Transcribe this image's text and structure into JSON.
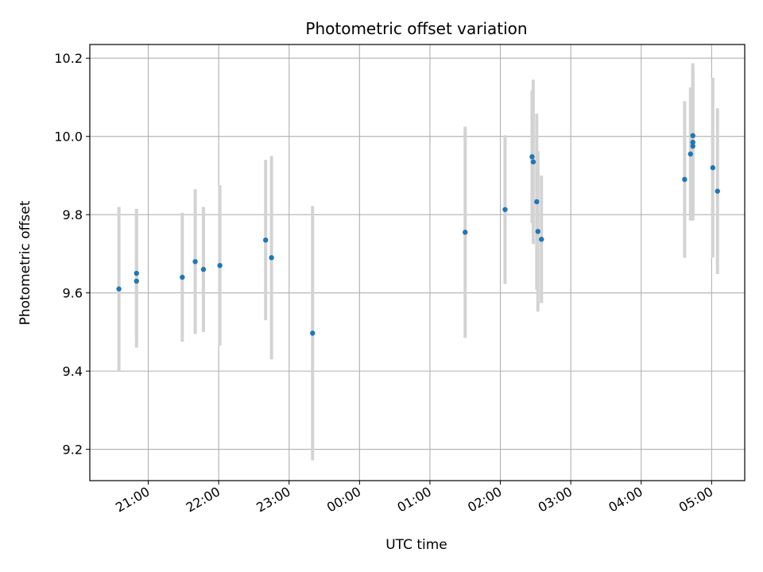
{
  "chart_data": {
    "type": "scatter",
    "title": "Photometric offset variation",
    "xlabel": "UTC time",
    "ylabel": "Photometric offset",
    "x_tick_labels": [
      "21:00",
      "22:00",
      "23:00",
      "00:00",
      "01:00",
      "02:00",
      "03:00",
      "04:00",
      "05:00"
    ],
    "x_ticks_hours": [
      21,
      22,
      23,
      24,
      25,
      26,
      27,
      28,
      29
    ],
    "xlim_hours": [
      20.17,
      29.47
    ],
    "y_ticks": [
      9.2,
      9.4,
      9.6,
      9.8,
      10.0,
      10.2
    ],
    "y_tick_labels": [
      "9.2",
      "9.4",
      "9.6",
      "9.8",
      "10.0",
      "10.2"
    ],
    "ylim": [
      9.12,
      10.235
    ],
    "grid": true,
    "point_color": "#1f77b4",
    "errorbar_color": "#d3d3d3",
    "points": [
      {
        "x": "20:35",
        "y": 9.61,
        "err": 0.21
      },
      {
        "x": "20:50",
        "y": 9.63,
        "err": 0.17
      },
      {
        "x": "20:50",
        "y": 9.65,
        "err": 0.165
      },
      {
        "x": "21:29",
        "y": 9.64,
        "err": 0.165
      },
      {
        "x": "21:40",
        "y": 9.68,
        "err": 0.185
      },
      {
        "x": "21:47",
        "y": 9.66,
        "err": 0.16
      },
      {
        "x": "22:01",
        "y": 9.67,
        "err": 0.205
      },
      {
        "x": "22:40",
        "y": 9.735,
        "err": 0.205
      },
      {
        "x": "22:45",
        "y": 9.69,
        "err": 0.26
      },
      {
        "x": "23:20",
        "y": 9.497,
        "err": 0.325
      },
      {
        "x": "01:30",
        "y": 9.755,
        "err": 0.27
      },
      {
        "x": "02:04",
        "y": 9.813,
        "err": 0.19
      },
      {
        "x": "02:27",
        "y": 9.948,
        "err": 0.17
      },
      {
        "x": "02:28",
        "y": 9.935,
        "err": 0.21
      },
      {
        "x": "02:31",
        "y": 9.833,
        "err": 0.225
      },
      {
        "x": "02:32",
        "y": 9.757,
        "err": 0.205
      },
      {
        "x": "02:35",
        "y": 9.737,
        "err": 0.163
      },
      {
        "x": "04:37",
        "y": 9.89,
        "err": 0.2
      },
      {
        "x": "04:42",
        "y": 9.955,
        "err": 0.17
      },
      {
        "x": "04:44",
        "y": 9.975,
        "err": 0.19
      },
      {
        "x": "04:44",
        "y": 9.985,
        "err": 0.19
      },
      {
        "x": "04:44",
        "y": 10.002,
        "err": 0.185
      },
      {
        "x": "05:01",
        "y": 9.92,
        "err": 0.23
      },
      {
        "x": "05:05",
        "y": 9.86,
        "err": 0.212
      }
    ]
  }
}
